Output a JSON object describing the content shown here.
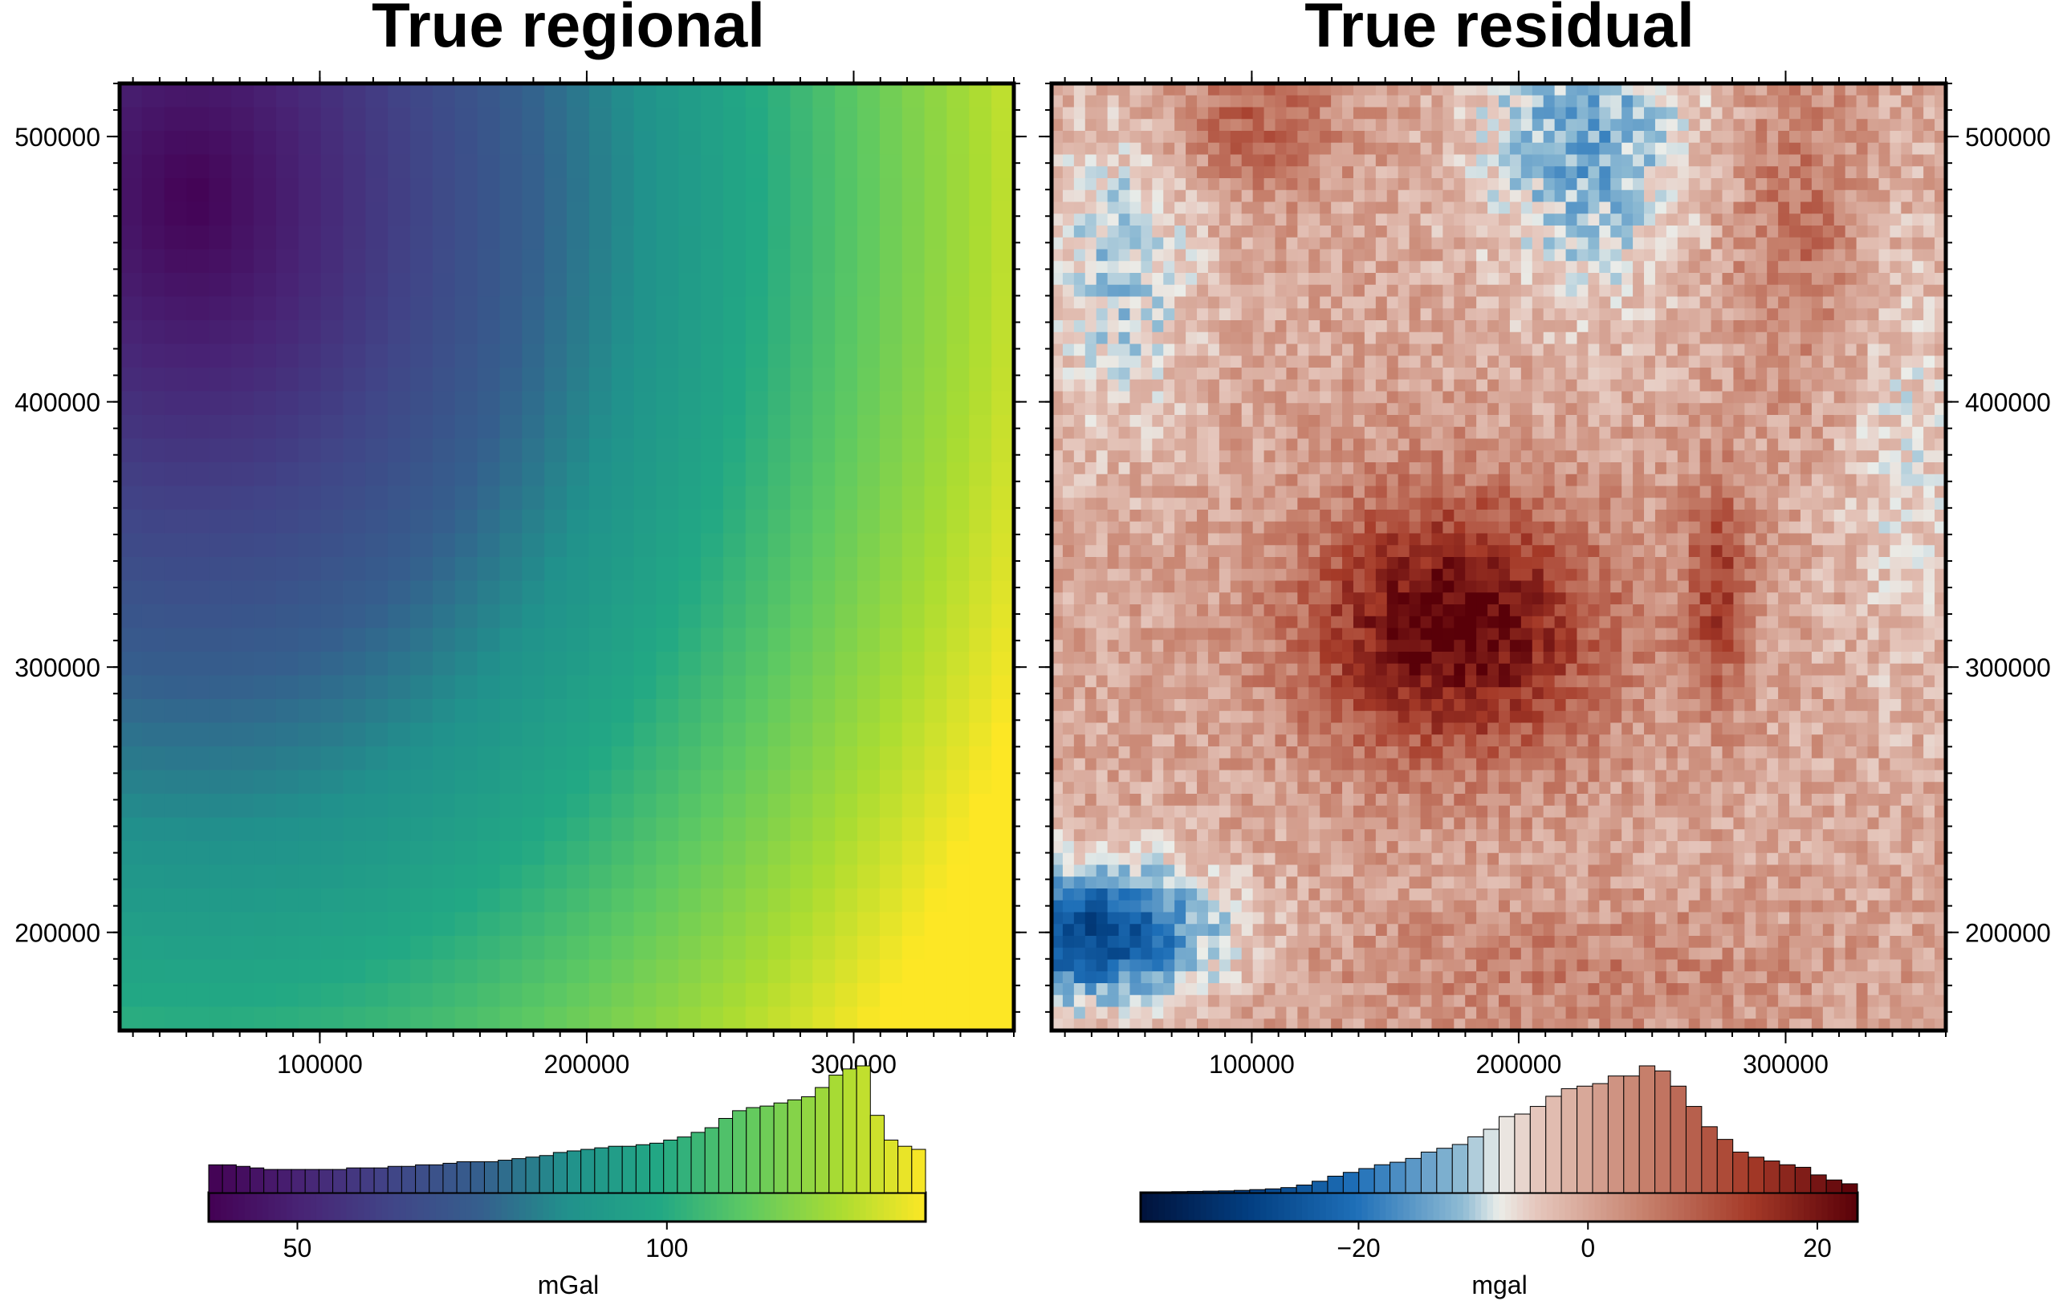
{
  "chart_data": [
    {
      "type": "heatmap",
      "title": "True regional",
      "x_ticks": [
        "100000",
        "200000",
        "300000"
      ],
      "y_ticks": [
        "500000",
        "400000",
        "300000",
        "200000"
      ],
      "xlim": [
        25000,
        360000
      ],
      "ylim": [
        163000,
        520000
      ],
      "x_tick_values": [
        100000,
        200000,
        300000
      ],
      "y_tick_values": [
        500000,
        400000,
        300000,
        200000
      ],
      "colormap": "viridis",
      "colorbar": {
        "label": "mGal",
        "tick_labels": [
          "50",
          "100"
        ],
        "tick_values": [
          50,
          100
        ],
        "range": [
          38,
          135
        ],
        "histogram": [
          9,
          9,
          8.5,
          8,
          7.5,
          7.5,
          7.5,
          7.5,
          7.5,
          7.5,
          8,
          8,
          8,
          8.5,
          8.5,
          9,
          9,
          9.5,
          10,
          10,
          10,
          10.5,
          11,
          11.5,
          12,
          13,
          13.5,
          14,
          14.5,
          15,
          15,
          15.5,
          16,
          17,
          18,
          19.5,
          21,
          24,
          26.5,
          27.5,
          28,
          29,
          30,
          31,
          34,
          38,
          40,
          41,
          25,
          17,
          15,
          14
        ]
      }
    },
    {
      "type": "heatmap",
      "title": "True residual",
      "x_ticks": [
        "100000",
        "200000",
        "300000"
      ],
      "y_ticks": [
        "500000",
        "400000",
        "300000",
        "200000"
      ],
      "xlim": [
        25000,
        360000
      ],
      "ylim": [
        163000,
        520000
      ],
      "x_tick_values": [
        100000,
        200000,
        300000
      ],
      "y_tick_values": [
        500000,
        400000,
        300000,
        200000
      ],
      "colormap": "vik",
      "colorbar": {
        "label": "mgal",
        "tick_labels": [
          "−20",
          "0",
          "20"
        ],
        "tick_values": [
          -20,
          0,
          20
        ],
        "range": [
          -39,
          23.5
        ],
        "histogram": [
          0.3,
          0.3,
          0.4,
          0.5,
          0.6,
          0.7,
          0.9,
          1.2,
          1.5,
          2,
          3,
          4.5,
          6.5,
          8,
          9.5,
          11,
          12,
          13.5,
          16,
          17.5,
          19,
          22,
          25,
          30,
          31,
          34,
          38,
          41,
          42,
          43,
          46,
          46,
          50,
          48,
          42,
          34,
          26,
          21,
          16,
          14,
          12.5,
          11,
          10,
          7,
          5,
          3.5
        ]
      }
    }
  ]
}
